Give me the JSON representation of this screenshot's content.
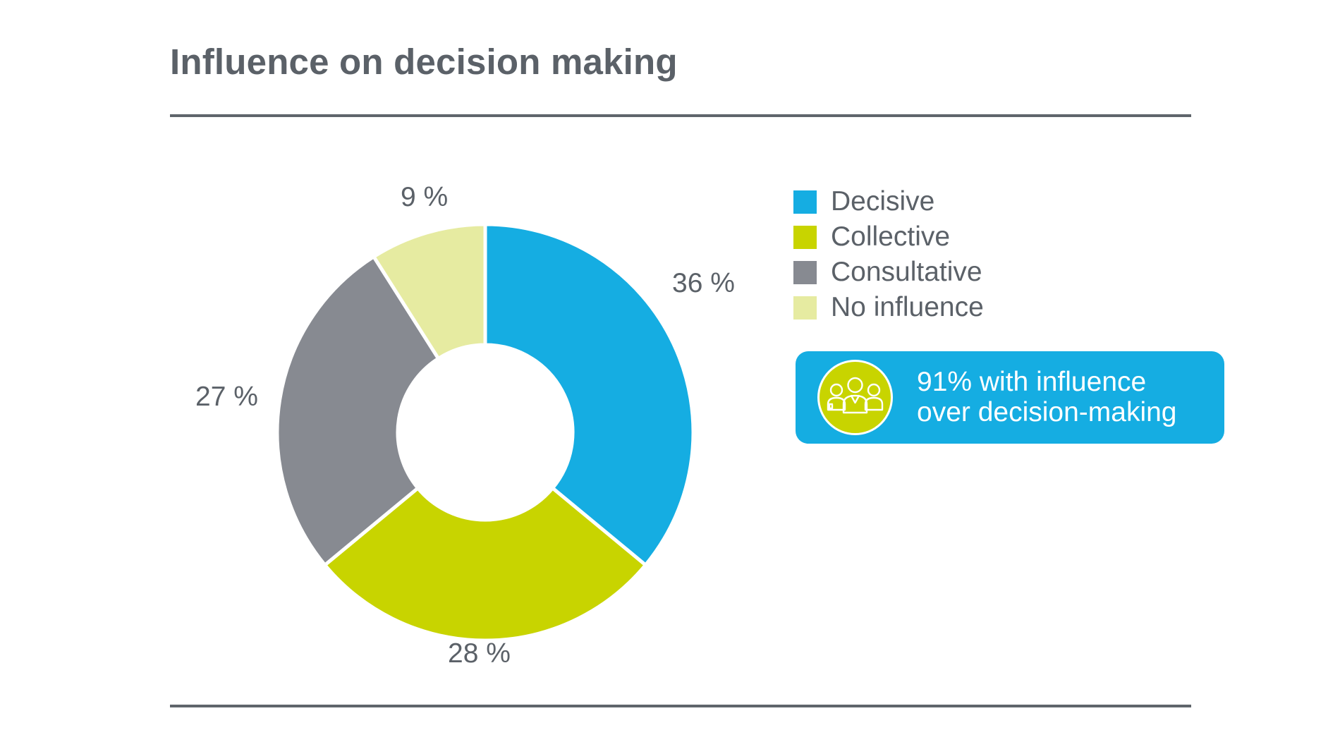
{
  "header": {
    "title": "Influence on decision making"
  },
  "chart_data": {
    "type": "pie",
    "style": "donut",
    "categories": [
      "Decisive",
      "Collective",
      "Consultative",
      "No influence"
    ],
    "values": [
      36,
      28,
      27,
      9
    ],
    "labels": [
      "36 %",
      "28 %",
      "27 %",
      "9 %"
    ],
    "colors": [
      "#15ade2",
      "#c8d400",
      "#878a91",
      "#e6eba1"
    ],
    "legend_placement": "right"
  },
  "legend": {
    "items": [
      {
        "label": "Decisive",
        "color": "#15ade2"
      },
      {
        "label": "Collective",
        "color": "#c8d400"
      },
      {
        "label": "Consultative",
        "color": "#878a91"
      },
      {
        "label": "No influence",
        "color": "#e6eba1"
      }
    ]
  },
  "callout": {
    "line1": "91% with influence",
    "line2": "over decision-making",
    "icon": "group-of-people-icon",
    "background": "#15ade2",
    "icon_color": "#c8d400"
  }
}
